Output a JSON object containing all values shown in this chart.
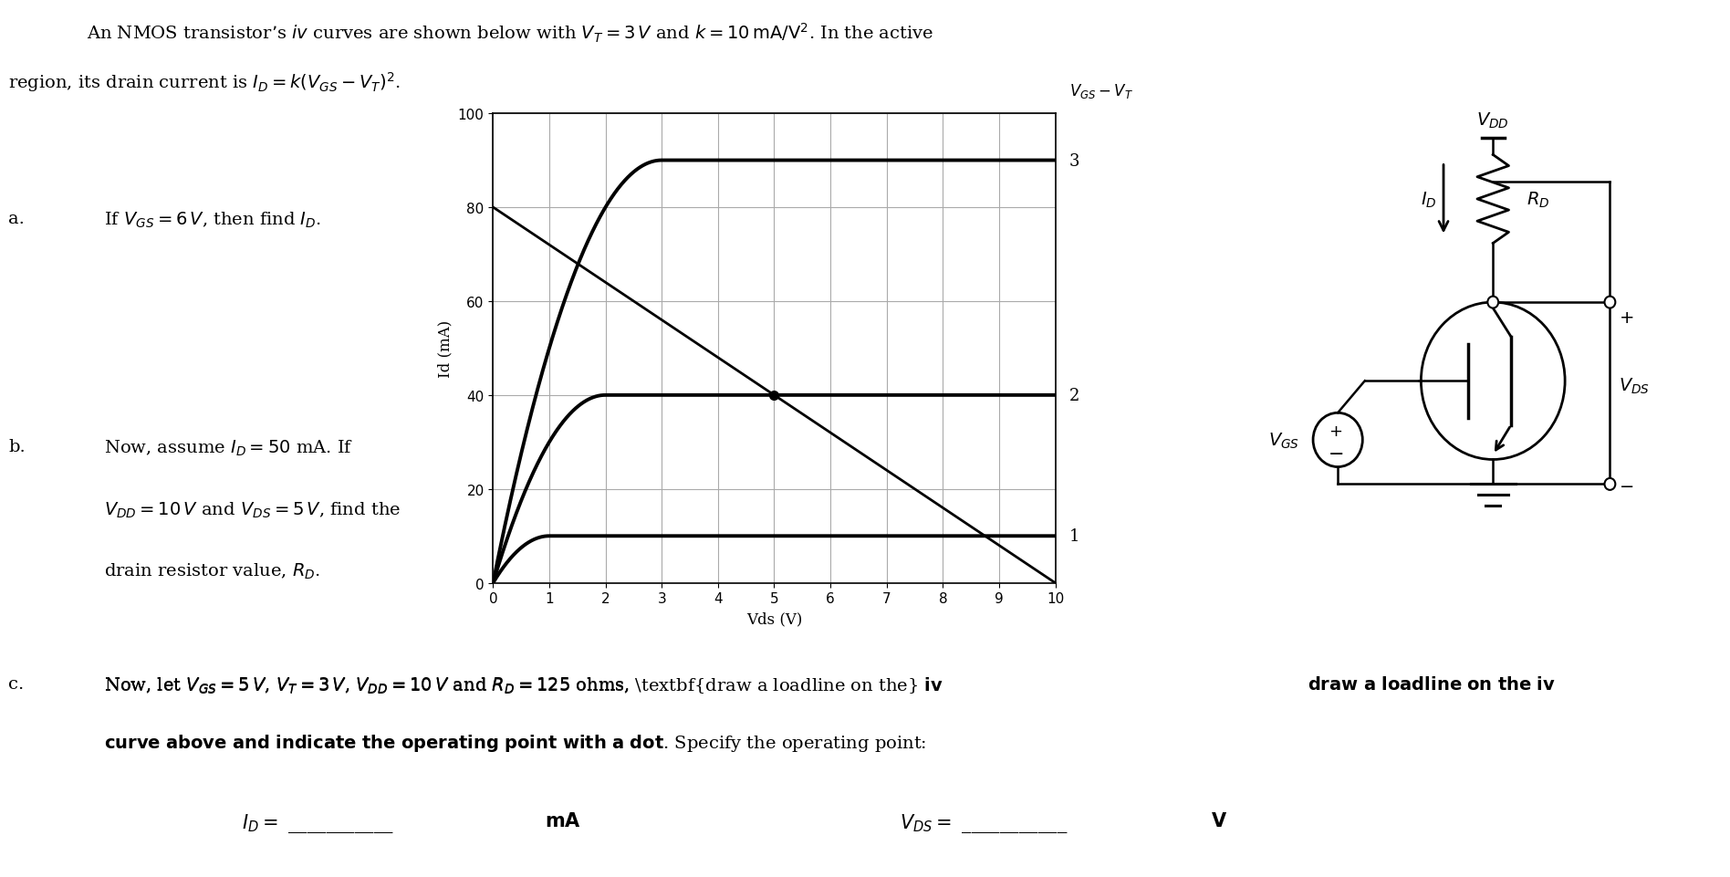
{
  "k": 10,
  "vt": 3,
  "vgs_vt_list": [
    1,
    2,
    3
  ],
  "vds_max": 10,
  "id_max": 100,
  "xlabel": "Vds (V)",
  "ylabel": "Id (mA)",
  "curve_color": "#000000",
  "grid_color": "#aaaaaa",
  "bg_color": "#ffffff",
  "curve_lw": 2.8,
  "vdd": 10,
  "rd": 125,
  "op_vds": 5.0,
  "op_id": 40.0,
  "title1": "An NMOS transistor’s $iv$ curves are shown below with $V_T = 3\\,V$ and $k = 10\\,\\mathrm{mA/V^2}$. In the active",
  "title2": "region, its drain current is $I_D = k(V_{GS} - V_T)^2$.",
  "qa_label": "a.",
  "qa_body": "If $V_{GS} = 6\\,V$, then find $I_D$.",
  "qb_label": "b.",
  "qb_line1": "Now, assume $I_D = 50$ mA. If",
  "qb_line2": "$V_{DD} = 10\\,V$ and $V_{DS} = 5\\,V$, find the",
  "qb_line3": "drain resistor value, $R_D$.",
  "qc_label": "c.",
  "qc_line1_normal": "Now, let $V_{GS} = 5\\,V$, $V_T = 3\\,V$, $V_{DD} = 10\\,V$ and $R_D = 125$ ohms, ",
  "qc_line1_bold": "draw a loadline on the $iv$",
  "qc_line2_bold": "curve above and indicate the operating point with a dot",
  "qc_line2_normal": ". Specify the operating point:",
  "id_fill": "$I_D =$ ___________",
  "id_unit": "mA",
  "vds_fill": "$V_{DS} =$ ___________",
  "vds_unit": "V",
  "vgs_vt_label": "$V_{GS} - V_T$"
}
